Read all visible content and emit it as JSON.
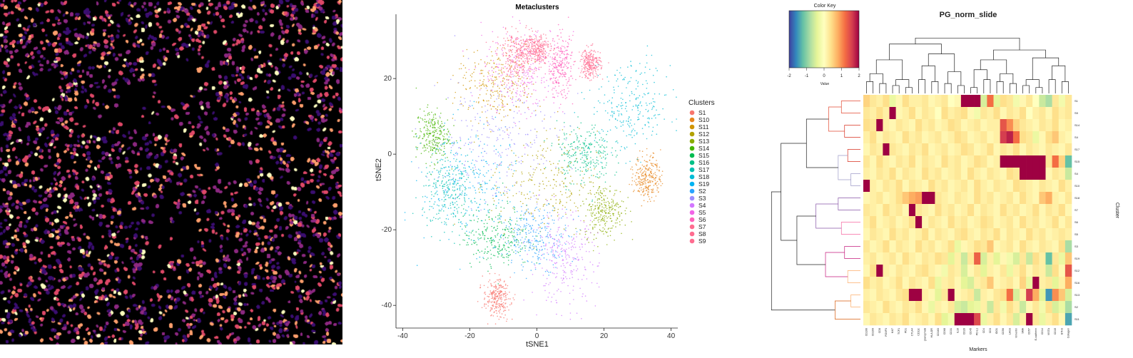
{
  "chart_data": [
    {
      "type": "image",
      "palette": [
        "#000000",
        "#3b0f70",
        "#8c2981",
        "#de4968",
        "#fe9f6d",
        "#fcfdbf"
      ]
    },
    {
      "type": "scatter",
      "title": "Metaclusters",
      "xlabel": "tSNE1",
      "ylabel": "tSNE2",
      "xlim": [
        -42,
        42
      ],
      "ylim": [
        -46,
        37
      ],
      "xticks": [
        -40,
        -20,
        0,
        20,
        40
      ],
      "yticks": [
        -40,
        -20,
        0,
        20
      ],
      "legend_title": "Clusters",
      "legend_position": "right",
      "grid": false,
      "series": [
        {
          "name": "S1",
          "color": "#F8766D",
          "center": [
            -12,
            -38
          ],
          "spread": [
            2.0,
            2.5
          ]
        },
        {
          "name": "S10",
          "color": "#E7851E",
          "center": [
            33,
            -6
          ],
          "spread": [
            2.0,
            3.0
          ]
        },
        {
          "name": "S11",
          "color": "#D09400",
          "center": [
            -12,
            18
          ],
          "spread": [
            6.0,
            5.0
          ]
        },
        {
          "name": "S12",
          "color": "#B2A100",
          "center": [
            2,
            -8
          ],
          "spread": [
            8.0,
            7.0
          ]
        },
        {
          "name": "S13",
          "color": "#89AC00",
          "center": [
            20,
            -15
          ],
          "spread": [
            3.0,
            3.5
          ]
        },
        {
          "name": "S14",
          "color": "#45B500",
          "center": [
            -31,
            5
          ],
          "spread": [
            2.5,
            3.5
          ]
        },
        {
          "name": "S15",
          "color": "#00BC51",
          "center": [
            -12,
            -22
          ],
          "spread": [
            5.0,
            4.0
          ]
        },
        {
          "name": "S16",
          "color": "#00C087",
          "center": [
            14,
            0
          ],
          "spread": [
            4.0,
            4.0
          ]
        },
        {
          "name": "S17",
          "color": "#00C0B2",
          "center": [
            -26,
            -10
          ],
          "spread": [
            4.0,
            5.0
          ]
        },
        {
          "name": "S18",
          "color": "#00BCD6",
          "center": [
            28,
            12
          ],
          "spread": [
            6.0,
            6.0
          ]
        },
        {
          "name": "S19",
          "color": "#00B3F2",
          "center": [
            -20,
            -8
          ],
          "spread": [
            7.0,
            8.0
          ]
        },
        {
          "name": "S2",
          "color": "#29A3FF",
          "center": [
            0,
            -22
          ],
          "spread": [
            5.0,
            4.0
          ]
        },
        {
          "name": "S3",
          "color": "#9C8DFF",
          "center": [
            -12,
            4
          ],
          "spread": [
            10.0,
            9.0
          ]
        },
        {
          "name": "S4",
          "color": "#D277FF",
          "center": [
            8,
            -28
          ],
          "spread": [
            5.0,
            6.0
          ]
        },
        {
          "name": "S5",
          "color": "#F265E7",
          "center": [
            -4,
            22
          ],
          "spread": [
            6.0,
            6.0
          ]
        },
        {
          "name": "S6",
          "color": "#FF62BC",
          "center": [
            7,
            23
          ],
          "spread": [
            2.0,
            4.0
          ]
        },
        {
          "name": "S7",
          "color": "#FF6C90",
          "center": [
            16,
            24
          ],
          "spread": [
            1.5,
            2.0
          ]
        },
        {
          "name": "S8",
          "color": "#FF6C90",
          "center": [
            -6,
            26
          ],
          "spread": [
            3.0,
            3.0
          ]
        },
        {
          "name": "S9",
          "color": "#FF6C90",
          "center": [
            0,
            28
          ],
          "spread": [
            2.0,
            2.0
          ]
        }
      ]
    },
    {
      "type": "heatmap",
      "title": "PG_norm_slide",
      "xlabel": "Markers",
      "ylabel": "Cluster",
      "color_key": {
        "title": "Color Key",
        "label": "Value",
        "ticks": [
          -2,
          -1,
          0,
          1,
          2
        ],
        "stops": [
          "#3f40a0",
          "#3288bd",
          "#66c2a5",
          "#abdda4",
          "#e6f598",
          "#ffffbf",
          "#fee08b",
          "#fdae61",
          "#f46d43",
          "#d53e4f",
          "#9e0142"
        ]
      },
      "rows": [
        "S1",
        "S9",
        "S14",
        "S4",
        "S17",
        "S15",
        "S4",
        "S10",
        "S18",
        "S7",
        "S6",
        "S5",
        "S3",
        "S19",
        "S12",
        "S16",
        "S13",
        "S2",
        "S11"
      ],
      "columns": [
        "CD206",
        "CD209",
        "CD8",
        "FOXP3",
        "Ki67",
        "TCF1",
        "PD1",
        "CTLA4",
        "CD11c",
        "granzymeB",
        "HLA-DR",
        "CD163",
        "CD68",
        "CD31",
        "IL10",
        "CD20",
        "CD45",
        "PD-L1",
        "CD4",
        "CD3",
        "IDO1",
        "CD56",
        "LAG3",
        "Vimentin",
        "SMA",
        "CD57",
        "E-cadherin",
        "CD14",
        "VISTA",
        "CD15",
        "B7H3",
        "Collagen"
      ],
      "values": [
        [
          0.5,
          0.3,
          0.2,
          0.4,
          -0.3,
          0.1,
          0.4,
          0.2,
          0.2,
          0.3,
          0.1,
          0.2,
          0.3,
          0.0,
          0.1,
          2.5,
          2.5,
          2.5,
          -0.5,
          1.2,
          -0.4,
          0.4,
          0.3,
          -0.2,
          0.1,
          0.3,
          0.0,
          -0.6,
          -0.8,
          0.3,
          -0.2,
          0.3
        ],
        [
          0.3,
          0.2,
          0.4,
          0.2,
          2.5,
          0.1,
          0.2,
          0.4,
          0.1,
          0.3,
          0.2,
          0.0,
          0.4,
          0.2,
          0.3,
          0.4,
          0.1,
          -0.2,
          0.3,
          0.2,
          0.4,
          0.1,
          0.3,
          0.2,
          0.4,
          0.0,
          0.2,
          0.3,
          0.1,
          0.4,
          0.2,
          0.3
        ],
        [
          0.4,
          0.3,
          2.5,
          0.2,
          0.1,
          0.3,
          0.2,
          0.1,
          0.4,
          0.2,
          0.3,
          0.1,
          0.2,
          0.4,
          0.3,
          0.1,
          0.2,
          0.3,
          0.1,
          0.2,
          0.2,
          1.4,
          1.0,
          0.5,
          0.3,
          0.2,
          0.1,
          0.3,
          0.2,
          0.4,
          0.1,
          0.2
        ],
        [
          0.2,
          0.4,
          0.1,
          0.3,
          0.2,
          0.1,
          0.4,
          0.2,
          0.3,
          0.1,
          0.2,
          0.3,
          0.1,
          0.2,
          0.4,
          0.3,
          0.1,
          0.2,
          0.3,
          0.1,
          0.2,
          1.6,
          1.8,
          1.2,
          0.4,
          0.3,
          -0.3,
          0.1,
          0.4,
          0.6,
          0.2,
          0.1
        ],
        [
          0.1,
          0.3,
          0.2,
          2.5,
          0.3,
          0.2,
          0.1,
          0.3,
          0.2,
          0.4,
          0.1,
          0.2,
          0.3,
          0.1,
          0.2,
          0.4,
          0.3,
          0.1,
          0.2,
          0.4,
          0.1,
          0.3,
          0.2,
          0.4,
          0.1,
          0.3,
          0.2,
          0.1,
          0.3,
          0.2,
          0.1,
          0.3
        ],
        [
          0.3,
          0.1,
          0.4,
          0.2,
          0.1,
          0.3,
          0.2,
          0.4,
          0.1,
          0.3,
          0.2,
          0.1,
          0.4,
          0.2,
          0.3,
          0.1,
          0.2,
          0.4,
          0.3,
          0.1,
          0.2,
          2.5,
          2.5,
          2.5,
          2.5,
          2.5,
          2.5,
          2.5,
          0.3,
          1.2,
          0.5,
          -1.2
        ],
        [
          0.2,
          0.1,
          0.3,
          0.2,
          0.4,
          0.1,
          0.3,
          0.2,
          0.1,
          0.4,
          0.2,
          0.3,
          0.1,
          0.2,
          0.3,
          0.1,
          0.4,
          0.2,
          0.1,
          0.3,
          0.2,
          0.1,
          0.4,
          0.3,
          2.5,
          2.5,
          2.5,
          2.5,
          0.1,
          0.3,
          0.2,
          -0.6
        ],
        [
          2.5,
          0.2,
          0.1,
          0.3,
          0.2,
          0.4,
          0.1,
          0.3,
          0.2,
          0.1,
          0.4,
          0.2,
          0.3,
          0.1,
          0.2,
          0.3,
          0.1,
          0.4,
          0.2,
          0.1,
          0.3,
          0.2,
          0.1,
          0.4,
          0.3,
          0.2,
          0.1,
          0.3,
          0.2,
          0.1,
          0.4,
          0.2
        ],
        [
          0.1,
          0.2,
          0.3,
          0.1,
          0.2,
          0.4,
          0.6,
          0.8,
          0.9,
          2.5,
          2.5,
          0.3,
          0.2,
          0.1,
          0.3,
          0.2,
          0.1,
          0.4,
          0.2,
          0.3,
          0.1,
          0.2,
          0.3,
          0.1,
          0.4,
          0.2,
          0.1,
          0.6,
          0.8,
          0.2,
          0.1,
          0.3
        ],
        [
          0.3,
          0.2,
          0.1,
          0.4,
          0.2,
          0.3,
          0.1,
          2.5,
          0.3,
          0.2,
          0.1,
          0.4,
          0.2,
          0.3,
          0.1,
          0.2,
          0.4,
          0.1,
          0.3,
          0.2,
          0.1,
          0.4,
          0.2,
          0.3,
          0.1,
          0.2,
          0.4,
          0.1,
          0.3,
          0.2,
          0.4,
          0.1
        ],
        [
          0.2,
          0.4,
          0.1,
          0.2,
          0.3,
          0.1,
          0.2,
          0.4,
          2.5,
          0.1,
          0.3,
          0.2,
          0.1,
          0.4,
          0.2,
          0.3,
          0.1,
          0.2,
          0.4,
          0.3,
          0.1,
          0.2,
          0.3,
          0.1,
          0.4,
          0.2,
          0.3,
          0.1,
          0.2,
          0.4,
          0.1,
          0.3
        ],
        [
          0.1,
          0.3,
          0.2,
          0.1,
          0.4,
          0.2,
          0.3,
          0.1,
          0.2,
          0.4,
          0.1,
          0.3,
          0.2,
          0.1,
          0.3,
          0.4,
          0.2,
          0.1,
          0.3,
          0.2,
          0.4,
          0.1,
          0.3,
          0.2,
          0.1,
          0.4,
          0.2,
          0.3,
          0.1,
          0.2,
          0.3,
          0.2
        ],
        [
          0.3,
          0.1,
          0.2,
          0.4,
          0.1,
          0.3,
          0.2,
          0.1,
          0.4,
          0.2,
          0.3,
          0.1,
          0.2,
          0.4,
          -0.3,
          0.1,
          0.2,
          0.4,
          0.3,
          0.6,
          0.1,
          0.2,
          0.3,
          0.1,
          0.4,
          0.2,
          0.1,
          0.3,
          0.2,
          0.1,
          0.4,
          -0.8
        ],
        [
          0.2,
          0.3,
          0.1,
          0.2,
          0.3,
          0.1,
          0.4,
          0.2,
          0.1,
          0.3,
          0.2,
          0.4,
          0.3,
          -0.4,
          0.2,
          -0.6,
          0.3,
          1.3,
          -0.5,
          0.2,
          -0.4,
          0.1,
          -0.2,
          -0.5,
          0.3,
          -0.6,
          0.4,
          0.2,
          -1.2,
          0.3,
          -0.3,
          0.6
        ],
        [
          0.1,
          0.4,
          2.5,
          0.2,
          0.1,
          0.3,
          0.2,
          0.1,
          0.3,
          0.4,
          0.2,
          0.1,
          -0.2,
          0.3,
          0.2,
          -0.5,
          0.1,
          0.3,
          -0.4,
          0.2,
          0.1,
          0.3,
          -0.3,
          0.2,
          0.4,
          0.1,
          0.3,
          0.2,
          -0.6,
          0.4,
          0.1,
          1.4
        ],
        [
          0.4,
          0.2,
          0.3,
          0.1,
          0.2,
          0.4,
          0.1,
          0.3,
          0.2,
          0.1,
          0.4,
          -0.3,
          0.2,
          0.3,
          0.1,
          -0.4,
          -0.5,
          0.2,
          0.3,
          0.6,
          0.1,
          0.2,
          0.3,
          0.1,
          0.5,
          -0.3,
          2.5,
          0.2,
          0.3,
          -0.4,
          0.2,
          0.8
        ],
        [
          0.2,
          0.1,
          0.3,
          0.2,
          0.1,
          0.3,
          0.4,
          2.5,
          2.5,
          0.2,
          0.1,
          -0.4,
          0.3,
          2.5,
          0.1,
          0.2,
          0.3,
          -0.6,
          0.2,
          0.1,
          0.3,
          0.4,
          1.2,
          -0.5,
          0.2,
          1.6,
          0.8,
          -0.4,
          -1.5,
          1.0,
          0.6,
          -0.5
        ],
        [
          0.3,
          0.2,
          0.1,
          0.4,
          0.2,
          0.1,
          0.3,
          0.2,
          0.4,
          0.1,
          -0.3,
          0.2,
          0.1,
          0.3,
          -0.5,
          -0.6,
          -0.4,
          -0.3,
          0.2,
          -0.6,
          0.3,
          -0.2,
          0.4,
          0.2,
          -0.6,
          0.1,
          0.3,
          -0.2,
          0.4,
          -0.5,
          -0.3,
          -0.8
        ],
        [
          0.1,
          0.3,
          0.2,
          0.1,
          0.3,
          0.2,
          0.4,
          0.1,
          0.2,
          0.3,
          0.1,
          0.4,
          -0.4,
          -0.2,
          2.5,
          2.5,
          2.5,
          1.5,
          -0.3,
          0.2,
          0.4,
          0.1,
          0.3,
          -0.5,
          0.2,
          2.5,
          0.3,
          -0.3,
          0.2,
          0.4,
          0.1,
          -1.4
        ]
      ]
    }
  ]
}
